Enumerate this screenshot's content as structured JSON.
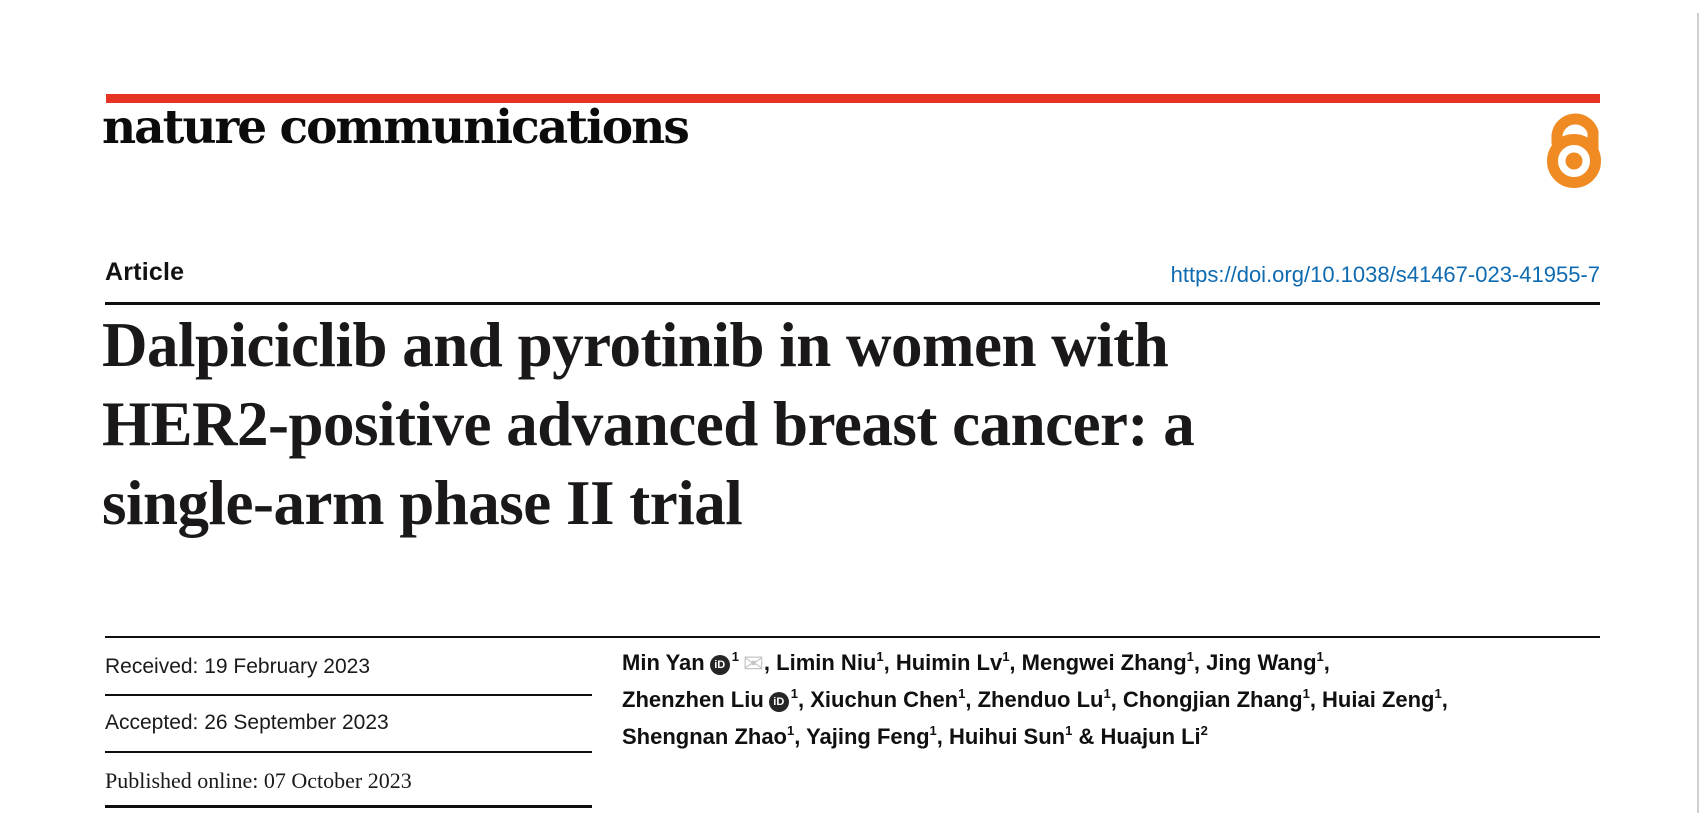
{
  "masthead": {
    "brand": "nature communications",
    "bar_color": "#e63323",
    "open_access_color": "#ef8b22"
  },
  "article_meta": {
    "type_label": "Article",
    "doi_link": "https://doi.org/10.1038/s41467-023-41955-7",
    "link_color": "#0f6bb0"
  },
  "title": {
    "lines": [
      "Dalpiciclib and pyrotinib in women with",
      "HER2-positive advanced breast cancer: a",
      "single-arm phase II trial"
    ]
  },
  "history": {
    "received": "Received: 19 February 2023",
    "accepted": "Accepted: 26 September 2023",
    "published": "Published online: 07 October 2023"
  },
  "authors": {
    "orcid_icon_text": "iD",
    "envelope_icon_glyph": "✉",
    "lines": [
      [
        {
          "name": "Min Yan",
          "orcid": true,
          "sup": "1",
          "envelope": true,
          "sep": ", "
        },
        {
          "name": "Limin Niu",
          "sup": "1",
          "sep": ", "
        },
        {
          "name": "Huimin Lv",
          "sup": "1",
          "sep": ", "
        },
        {
          "name": "Mengwei Zhang",
          "sup": "1",
          "sep": ", "
        },
        {
          "name": "Jing Wang",
          "sup": "1",
          "sep": ","
        }
      ],
      [
        {
          "name": "Zhenzhen Liu",
          "orcid": true,
          "sup": "1",
          "sep": ", "
        },
        {
          "name": "Xiuchun Chen",
          "sup": "1",
          "sep": ", "
        },
        {
          "name": "Zhenduo Lu",
          "sup": "1",
          "sep": ", "
        },
        {
          "name": "Chongjian Zhang",
          "sup": "1",
          "sep": ", "
        },
        {
          "name": "Huiai Zeng",
          "sup": "1",
          "sep": ","
        }
      ],
      [
        {
          "name": "Shengnan Zhao",
          "sup": "1",
          "sep": ", "
        },
        {
          "name": "Yajing Feng",
          "sup": "1",
          "sep": ", "
        },
        {
          "name": "Huihui Sun",
          "sup": "1",
          "sep": " & "
        },
        {
          "name": "Huajun Li",
          "sup": "2",
          "sep": ""
        }
      ]
    ]
  }
}
